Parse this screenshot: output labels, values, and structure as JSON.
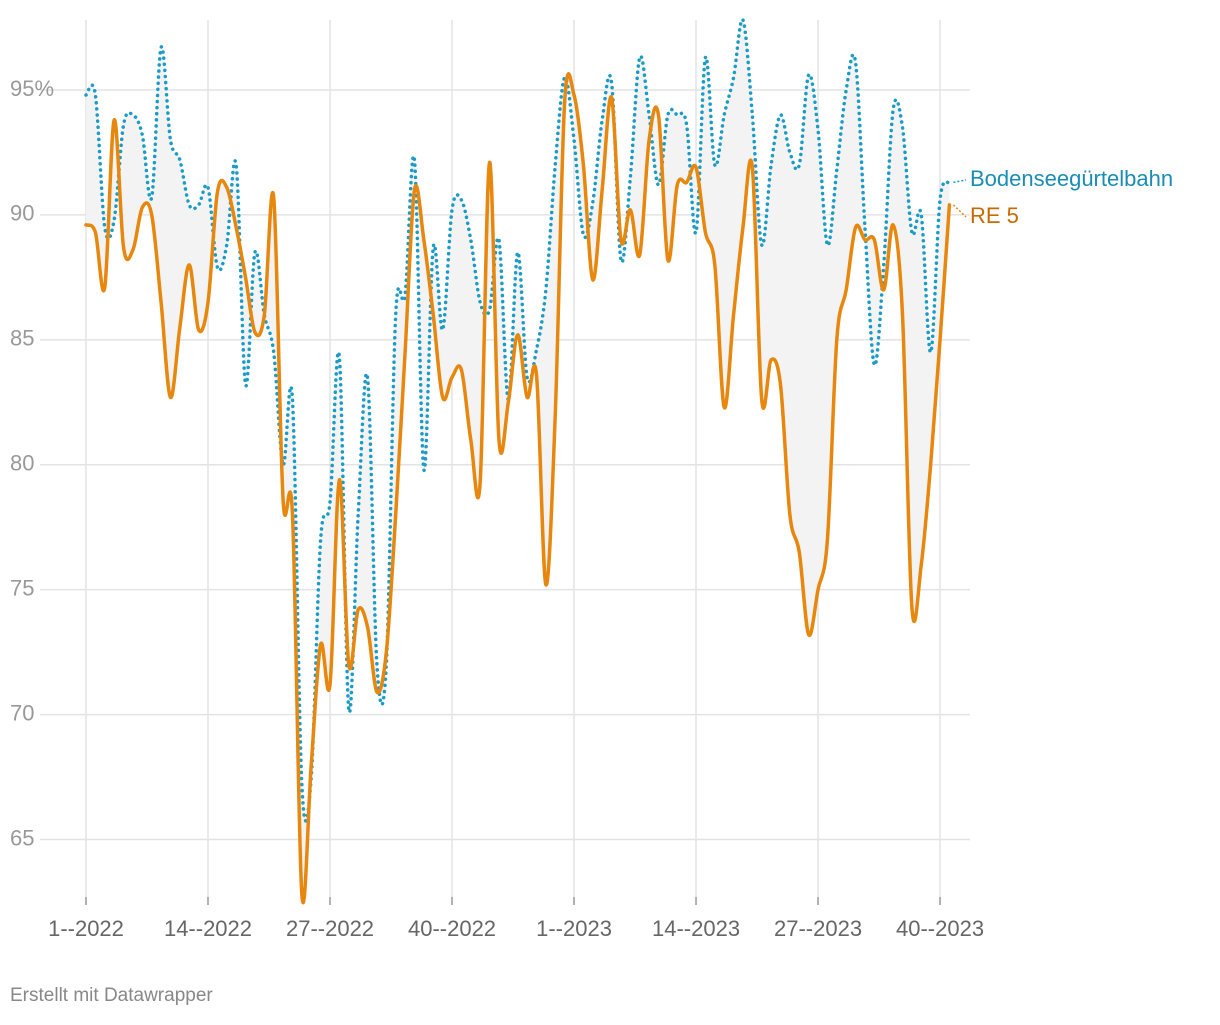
{
  "chart_data": {
    "type": "line",
    "categories": [
      "1--2022",
      null,
      null,
      null,
      null,
      null,
      null,
      null,
      null,
      null,
      null,
      null,
      null,
      "14--2022",
      null,
      null,
      null,
      null,
      null,
      null,
      null,
      null,
      null,
      null,
      null,
      null,
      "27--2022",
      null,
      null,
      null,
      null,
      null,
      null,
      null,
      null,
      null,
      null,
      null,
      null,
      "40--2022",
      null,
      null,
      null,
      null,
      null,
      null,
      null,
      null,
      null,
      null,
      null,
      null,
      "1--2023",
      null,
      null,
      null,
      null,
      null,
      null,
      null,
      null,
      null,
      null,
      null,
      null,
      "14--2023",
      null,
      null,
      null,
      null,
      null,
      null,
      null,
      null,
      null,
      null,
      null,
      null,
      "27--2023",
      null,
      null,
      null,
      null,
      null,
      null,
      null,
      null,
      null,
      null,
      null,
      null,
      "40--2023",
      null
    ],
    "series": [
      {
        "name": "Bodenseegürtelbahn",
        "color": "#1a9cc7",
        "dash": "dotted",
        "values": [
          94.8,
          94.8,
          89.5,
          89.8,
          93.6,
          94.0,
          93.2,
          90.7,
          96.7,
          93,
          92.2,
          90.4,
          90.4,
          91.1,
          87.9,
          88.8,
          92.0,
          83.2,
          88.5,
          86,
          84.5,
          80,
          82.6,
          67.2,
          67.5,
          77,
          78.5,
          84.3,
          70.2,
          78,
          83.5,
          72,
          72,
          86,
          86.8,
          92.2,
          79.8,
          88.7,
          85.4,
          90.2,
          90.6,
          89,
          86.5,
          86.2,
          89,
          82.6,
          88.5,
          83.5,
          84.6,
          87,
          92,
          95.5,
          93,
          89.2,
          90.5,
          93.8,
          95.3,
          88.2,
          91.5,
          96.3,
          94,
          91.2,
          94,
          94,
          93.6,
          89.3,
          96.3,
          92,
          94,
          95.5,
          97.8,
          94,
          88.8,
          92,
          94,
          92.5,
          92,
          95.6,
          93.4,
          88.8,
          91.8,
          95,
          96.1,
          89.5,
          84,
          88,
          94.2,
          93.5,
          89.3,
          90,
          84.5,
          90.6,
          91.3
        ]
      },
      {
        "name": "RE 5",
        "color": "#e8870e",
        "dash": "solid",
        "values": [
          89.6,
          89.3,
          87.1,
          93.8,
          88.7,
          88.6,
          90.3,
          90.0,
          86.5,
          82.7,
          85.5,
          88.0,
          85.4,
          86.5,
          90.9,
          91.1,
          89.5,
          87.5,
          85.3,
          86.0,
          90.7,
          78.6,
          78.0,
          62.8,
          68,
          72.8,
          71.2,
          79.4,
          72,
          74.2,
          73.5,
          70.9,
          72.5,
          78,
          84.5,
          91.0,
          89,
          86,
          82.7,
          83.5,
          83.8,
          81,
          79.3,
          92.1,
          81,
          82.5,
          85.2,
          82.7,
          83.6,
          75.2,
          82,
          94.5,
          94.8,
          92,
          87.4,
          91,
          94.7,
          89,
          90.2,
          88.4,
          93,
          94,
          88.2,
          91.2,
          91.3,
          91.9,
          89.3,
          88,
          82.3,
          86,
          89.5,
          91.9,
          82.6,
          84.2,
          83.2,
          78,
          76.5,
          73.2,
          75,
          77,
          85,
          87,
          89.5,
          89,
          89,
          87,
          89.6,
          86,
          74.3,
          76,
          80,
          85,
          90.4
        ]
      }
    ],
    "ylim": [
      62.7,
      97.8
    ],
    "yticks": [
      65,
      70,
      75,
      80,
      85,
      90,
      {
        "value": 95,
        "label": "95%"
      }
    ],
    "grid": true,
    "fill_between": true,
    "credit": "Erstellt mit Datawrapper"
  }
}
